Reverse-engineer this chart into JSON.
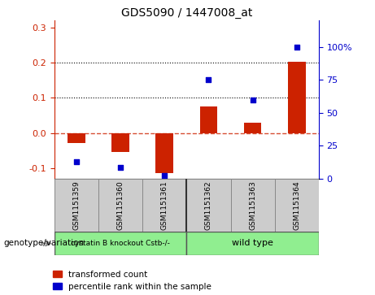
{
  "title": "GDS5090 / 1447008_at",
  "samples": [
    "GSM1151359",
    "GSM1151360",
    "GSM1151361",
    "GSM1151362",
    "GSM1151363",
    "GSM1151364"
  ],
  "red_values": [
    -0.03,
    -0.055,
    -0.115,
    0.075,
    0.028,
    0.202
  ],
  "blue_percentiles": [
    12.5,
    8.5,
    2.0,
    75.0,
    60.0,
    100.0
  ],
  "ylim_left": [
    -0.13,
    0.32
  ],
  "ylim_right": [
    0,
    120
  ],
  "yticks_left": [
    -0.1,
    0.0,
    0.1,
    0.2,
    0.3
  ],
  "yticks_right": [
    0,
    25,
    50,
    75,
    100
  ],
  "ytick_labels_right": [
    "0",
    "25",
    "50",
    "75",
    "100%"
  ],
  "dotted_lines": [
    0.1,
    0.2
  ],
  "group1_label": "cystatin B knockout Cstb-/-",
  "group2_label": "wild type",
  "group1_color": "#90EE90",
  "group2_color": "#90EE90",
  "bar_color": "#CC2200",
  "dot_color": "#0000CC",
  "bg_color": "#FFFFFF",
  "legend_red_label": "transformed count",
  "legend_blue_label": "percentile rank within the sample",
  "genotype_label": "genotype/variation"
}
